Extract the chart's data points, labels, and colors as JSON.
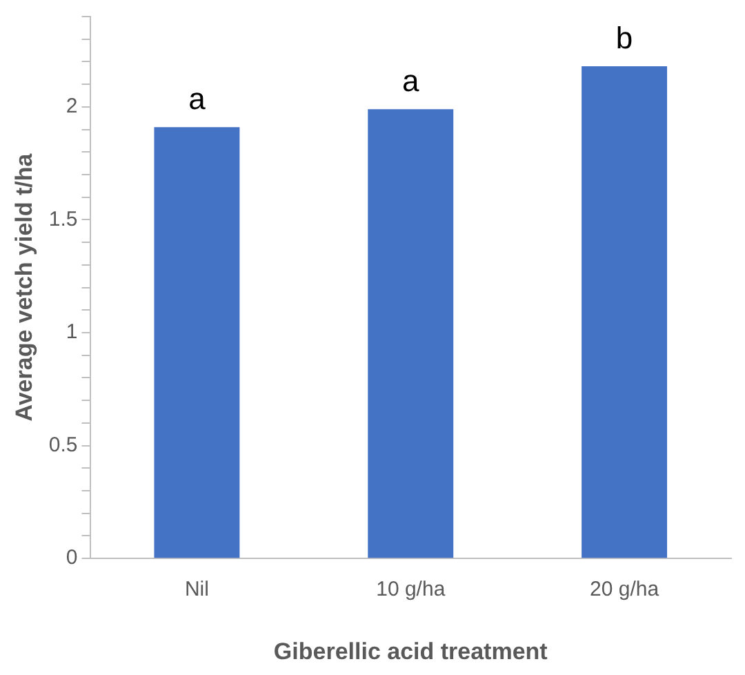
{
  "chart_data": {
    "type": "bar",
    "xlabel": "Giberellic acid treatment",
    "ylabel": "Average vetch yield t/ha",
    "categories": [
      "Nil",
      "10 g/ha",
      "20 g/ha"
    ],
    "values": [
      1.91,
      1.99,
      2.18
    ],
    "color": "#4472c4",
    "ylim": [
      0,
      2.4
    ],
    "yticks": [
      0,
      {
        "value": 0.1,
        "label": null
      },
      {
        "value": 0.2,
        "label": null
      },
      {
        "value": 0.3,
        "label": null
      },
      {
        "value": 0.4,
        "label": null
      },
      0.5,
      {
        "value": 0.6,
        "label": null
      },
      {
        "value": 0.7,
        "label": null
      },
      {
        "value": 0.8,
        "label": null
      },
      {
        "value": 0.9,
        "label": null
      },
      1,
      {
        "value": 1.1,
        "label": null
      },
      {
        "value": 1.2,
        "label": null
      },
      {
        "value": 1.3,
        "label": null
      },
      {
        "value": 1.4,
        "label": null
      },
      1.5,
      {
        "value": 1.6,
        "label": null
      },
      {
        "value": 1.7,
        "label": null
      },
      {
        "value": 1.8,
        "label": null
      },
      {
        "value": 1.9,
        "label": null
      },
      2,
      {
        "value": 2.1,
        "label": null
      },
      {
        "value": 2.2,
        "label": null
      },
      {
        "value": 2.3,
        "label": null
      },
      {
        "value": 2.4,
        "label": null
      }
    ],
    "annotations": [
      {
        "text": "a",
        "x": "Nil",
        "y": 1.91
      },
      {
        "text": "a",
        "x": "10 g/ha",
        "y": 1.99
      },
      {
        "text": "b",
        "x": "20 g/ha",
        "y": 2.18
      }
    ],
    "grid": false,
    "legend": false
  }
}
